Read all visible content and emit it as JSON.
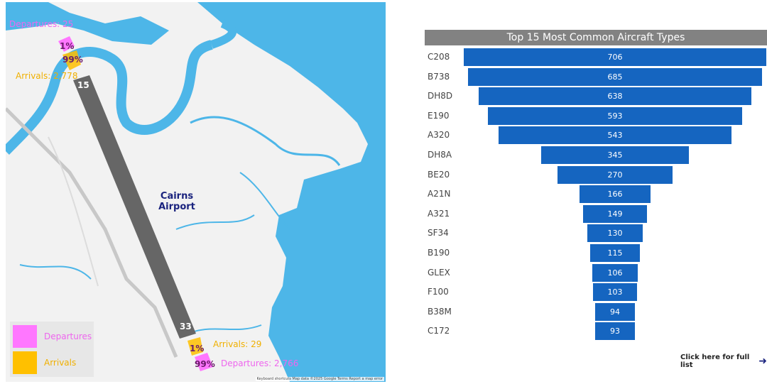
{
  "map": {
    "airport_label_1": "Cairns",
    "airport_label_2": "Airport",
    "runway_north": "15",
    "runway_south": "33",
    "north_departures": "Departures: 25",
    "north_arrivals": "Arrivals: 2,778",
    "north_dep_pct": "1%",
    "north_arr_pct": "99%",
    "south_arrivals": "Arrivals: 29",
    "south_departures": "Departures: 2,766",
    "south_arr_pct": "1%",
    "south_dep_pct": "99%",
    "attribution": "Keyboard shortcuts   Map data ©2025 Google   Terms   Report a map error",
    "colors": {
      "water": "#4db6e8",
      "land": "#f2f2f2",
      "runway": "#666666",
      "departures": "#ff77ff",
      "arrivals": "#ffc000"
    }
  },
  "legend": {
    "departures": "Departures",
    "arrivals": "Arrivals"
  },
  "chart_data": {
    "type": "bar",
    "title": "Top 15 Most Common Aircraft Types",
    "categories": [
      "C208",
      "B738",
      "DH8D",
      "E190",
      "A320",
      "DH8A",
      "BE20",
      "A21N",
      "A321",
      "SF34",
      "B190",
      "GLEX",
      "F100",
      "B38M",
      "C172"
    ],
    "values": [
      706,
      685,
      638,
      593,
      543,
      345,
      270,
      166,
      149,
      130,
      115,
      106,
      103,
      94,
      93
    ],
    "bar_color": "#1565c0"
  },
  "footer": {
    "full_list_label": "Click here for full list"
  }
}
